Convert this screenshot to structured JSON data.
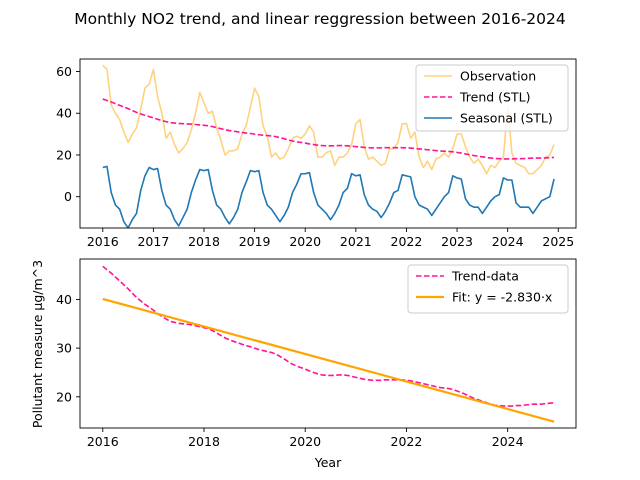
{
  "title": "Monthly NO2 trend, and linear reggression between 2016-2024",
  "colors": {
    "observation": "#ffd27f",
    "trend": "#ff1493",
    "seasonal": "#1f77b4",
    "fit": "#ffa500"
  },
  "chart_data": [
    {
      "type": "line",
      "xlim": [
        2015.55,
        2025.35
      ],
      "ylim": [
        -15,
        66
      ],
      "x_ticks": [
        2016,
        2017,
        2018,
        2019,
        2020,
        2021,
        2022,
        2023,
        2024,
        2025
      ],
      "y_ticks": [
        0,
        20,
        40,
        60
      ],
      "xlabel": "",
      "ylabel": "",
      "grid": false,
      "legend": "top-right",
      "series": [
        {
          "name": "Observation",
          "color": "observation",
          "style": "solid",
          "x_start": 2016,
          "x_step": 0.08333,
          "values": [
            63,
            61,
            44,
            40,
            37,
            31,
            26,
            30,
            33,
            42,
            52,
            54,
            61,
            48,
            40,
            28,
            31,
            25,
            21,
            23,
            26,
            32,
            40,
            50,
            45,
            40,
            41,
            33,
            27,
            20,
            22,
            22,
            23,
            30,
            34,
            43,
            52,
            48,
            34,
            29,
            19,
            21,
            18,
            19,
            23,
            28,
            29,
            28,
            30,
            34,
            31,
            19,
            19,
            21,
            22,
            15,
            19,
            19,
            21,
            25,
            35,
            37,
            24,
            18,
            19,
            17,
            15,
            16,
            23,
            23,
            26,
            35,
            35,
            28,
            31,
            19,
            14,
            17,
            13,
            18,
            19,
            21,
            19,
            23,
            30,
            30,
            24,
            19,
            16,
            18,
            15,
            11,
            15,
            14,
            17,
            19,
            43,
            21,
            16,
            15,
            14,
            11,
            11,
            13,
            15,
            19,
            20,
            25
          ]
        },
        {
          "name": "Trend (STL)",
          "color": "trend",
          "style": "dashed",
          "x_start": 2016,
          "x_step": 0.08333,
          "values": [
            46.8,
            46.1,
            45.4,
            44.6,
            43.8,
            43.0,
            42.2,
            41.3,
            40.4,
            39.7,
            39.0,
            38.4,
            37.8,
            37.1,
            36.5,
            36.0,
            35.5,
            35.3,
            35.1,
            35.0,
            34.9,
            34.8,
            34.6,
            34.4,
            34.2,
            34.0,
            33.6,
            33.1,
            32.6,
            32.1,
            31.7,
            31.4,
            31.1,
            30.8,
            30.5,
            30.3,
            30.0,
            29.7,
            29.5,
            29.3,
            29.1,
            28.8,
            28.3,
            27.8,
            27.2,
            26.7,
            26.3,
            26.0,
            25.7,
            25.3,
            25.0,
            24.7,
            24.5,
            24.4,
            24.4,
            24.4,
            24.5,
            24.5,
            24.4,
            24.2,
            24.0,
            23.8,
            23.6,
            23.5,
            23.4,
            23.4,
            23.4,
            23.5,
            23.5,
            23.5,
            23.5,
            23.5,
            23.4,
            23.3,
            23.1,
            22.9,
            22.7,
            22.5,
            22.3,
            22.1,
            21.9,
            21.8,
            21.7,
            21.5,
            21.2,
            20.9,
            20.5,
            20.1,
            19.7,
            19.4,
            19.1,
            18.8,
            18.5,
            18.3,
            18.2,
            18.1,
            18.1,
            18.1,
            18.2,
            18.2,
            18.3,
            18.4,
            18.5,
            18.5,
            18.5,
            18.6,
            18.7,
            18.8
          ]
        },
        {
          "name": "Seasonal (STL)",
          "color": "seasonal",
          "style": "solid",
          "x_start": 2016,
          "x_step": 0.08333,
          "values": [
            14,
            14.5,
            2,
            -4,
            -6,
            -12,
            -15,
            -11,
            -8,
            3,
            10,
            14,
            13,
            13.5,
            3,
            -4,
            -6,
            -11,
            -14,
            -10,
            -6,
            2,
            8,
            13,
            12.5,
            13,
            3,
            -4,
            -6,
            -10,
            -13,
            -10,
            -6,
            2,
            7,
            12.5,
            12,
            12.5,
            2,
            -4,
            -6,
            -9,
            -12,
            -9,
            -5,
            2,
            6,
            11,
            11,
            11.5,
            2,
            -4,
            -6,
            -8,
            -11,
            -8,
            -4,
            2,
            4,
            11,
            10,
            10.5,
            1,
            -4,
            -6,
            -7,
            -10,
            -7,
            -3,
            2,
            3,
            10.5,
            10,
            9.5,
            0,
            -4,
            -5,
            -6,
            -9,
            -6,
            -3,
            0,
            2,
            10,
            9,
            8.5,
            -1,
            -4,
            -5,
            -5,
            -8,
            -5,
            -2,
            0,
            1,
            9,
            8,
            8,
            -3,
            -5,
            -5,
            -5,
            -8,
            -5,
            -2,
            -1,
            0,
            8.5
          ]
        }
      ]
    },
    {
      "type": "line",
      "xlim": [
        2015.55,
        2025.35
      ],
      "ylim": [
        13.6,
        48.3
      ],
      "x_ticks": [
        2016,
        2018,
        2020,
        2022,
        2024
      ],
      "y_ticks": [
        20,
        30,
        40
      ],
      "xlabel": "Year",
      "ylabel": "Pollutant measure µg/m^3",
      "grid": false,
      "legend": "top-right",
      "series": [
        {
          "name": "Trend-data",
          "color": "trend",
          "style": "dashed",
          "x_start": 2016,
          "x_step": 0.08333,
          "values": [
            46.8,
            46.1,
            45.4,
            44.6,
            43.8,
            43.0,
            42.2,
            41.3,
            40.4,
            39.7,
            39.0,
            38.4,
            37.8,
            37.1,
            36.5,
            36.0,
            35.5,
            35.3,
            35.1,
            35.0,
            34.9,
            34.8,
            34.6,
            34.4,
            34.2,
            34.0,
            33.6,
            33.1,
            32.6,
            32.1,
            31.7,
            31.4,
            31.1,
            30.8,
            30.5,
            30.3,
            30.0,
            29.7,
            29.5,
            29.3,
            29.1,
            28.8,
            28.3,
            27.8,
            27.2,
            26.7,
            26.3,
            26.0,
            25.7,
            25.3,
            25.0,
            24.7,
            24.5,
            24.4,
            24.4,
            24.4,
            24.5,
            24.5,
            24.4,
            24.2,
            24.0,
            23.8,
            23.6,
            23.5,
            23.4,
            23.4,
            23.4,
            23.5,
            23.5,
            23.5,
            23.5,
            23.5,
            23.4,
            23.3,
            23.1,
            22.9,
            22.7,
            22.5,
            22.3,
            22.1,
            21.9,
            21.8,
            21.7,
            21.5,
            21.2,
            20.9,
            20.5,
            20.1,
            19.7,
            19.4,
            19.1,
            18.8,
            18.5,
            18.3,
            18.2,
            18.1,
            18.1,
            18.1,
            18.2,
            18.2,
            18.3,
            18.4,
            18.5,
            18.5,
            18.5,
            18.6,
            18.7,
            18.8
          ]
        },
        {
          "name": "Fit: y = -2.830·x",
          "color": "fit",
          "style": "solid",
          "x": [
            2016,
            2024.917
          ],
          "values": [
            40.1,
            14.9
          ]
        }
      ]
    }
  ]
}
